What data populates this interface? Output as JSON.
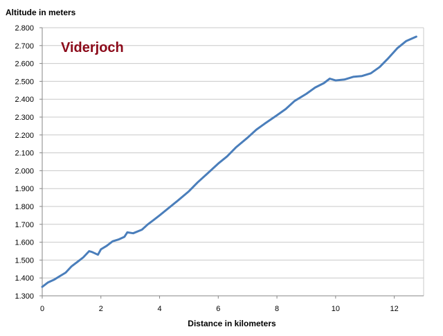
{
  "chart_data": {
    "type": "line",
    "title": "Viderjoch",
    "xlabel": "Distance in kilometers",
    "ylabel": "Altitude in meters",
    "xlim": [
      0,
      13
    ],
    "ylim": [
      1300,
      2800
    ],
    "xticks": [
      0,
      2,
      4,
      6,
      8,
      10,
      12
    ],
    "xtick_labels": [
      "0",
      "2",
      "4",
      "6",
      "8",
      "10",
      "12"
    ],
    "yticks": [
      1300,
      1400,
      1500,
      1600,
      1700,
      1800,
      1900,
      2000,
      2100,
      2200,
      2300,
      2400,
      2500,
      2600,
      2700,
      2800
    ],
    "ytick_labels": [
      "1.300",
      "1.400",
      "1.500",
      "1.600",
      "1.700",
      "1.800",
      "1.900",
      "2.000",
      "2.100",
      "2.200",
      "2.300",
      "2.400",
      "2.500",
      "2.600",
      "2.700",
      "2.800"
    ],
    "grid": true,
    "legend": "none",
    "colors": {
      "line": "#4a7ebb",
      "title": "#8b0a1a",
      "grid": "#c8c8c8",
      "axis": "#868686"
    },
    "series": [
      {
        "x": [
          0,
          0.2,
          0.4,
          0.6,
          0.8,
          1.0,
          1.2,
          1.4,
          1.6,
          1.7,
          1.9,
          2.0,
          2.2,
          2.4,
          2.6,
          2.8,
          2.9,
          3.1,
          3.4,
          3.6,
          3.8,
          4.0,
          4.3,
          4.6,
          5.0,
          5.3,
          5.6,
          6.0,
          6.3,
          6.6,
          7.0,
          7.3,
          7.6,
          8.0,
          8.3,
          8.6,
          9.0,
          9.3,
          9.6,
          9.8,
          10.0,
          10.3,
          10.6,
          10.9,
          11.2,
          11.5,
          11.8,
          12.1,
          12.4,
          12.75
        ],
        "y": [
          1350,
          1375,
          1390,
          1410,
          1430,
          1465,
          1490,
          1515,
          1550,
          1545,
          1530,
          1560,
          1580,
          1605,
          1615,
          1630,
          1655,
          1650,
          1670,
          1700,
          1725,
          1750,
          1790,
          1830,
          1885,
          1935,
          1980,
          2040,
          2080,
          2130,
          2185,
          2230,
          2265,
          2310,
          2345,
          2390,
          2430,
          2465,
          2490,
          2515,
          2505,
          2510,
          2525,
          2530,
          2545,
          2580,
          2630,
          2685,
          2725,
          2750
        ]
      }
    ]
  }
}
